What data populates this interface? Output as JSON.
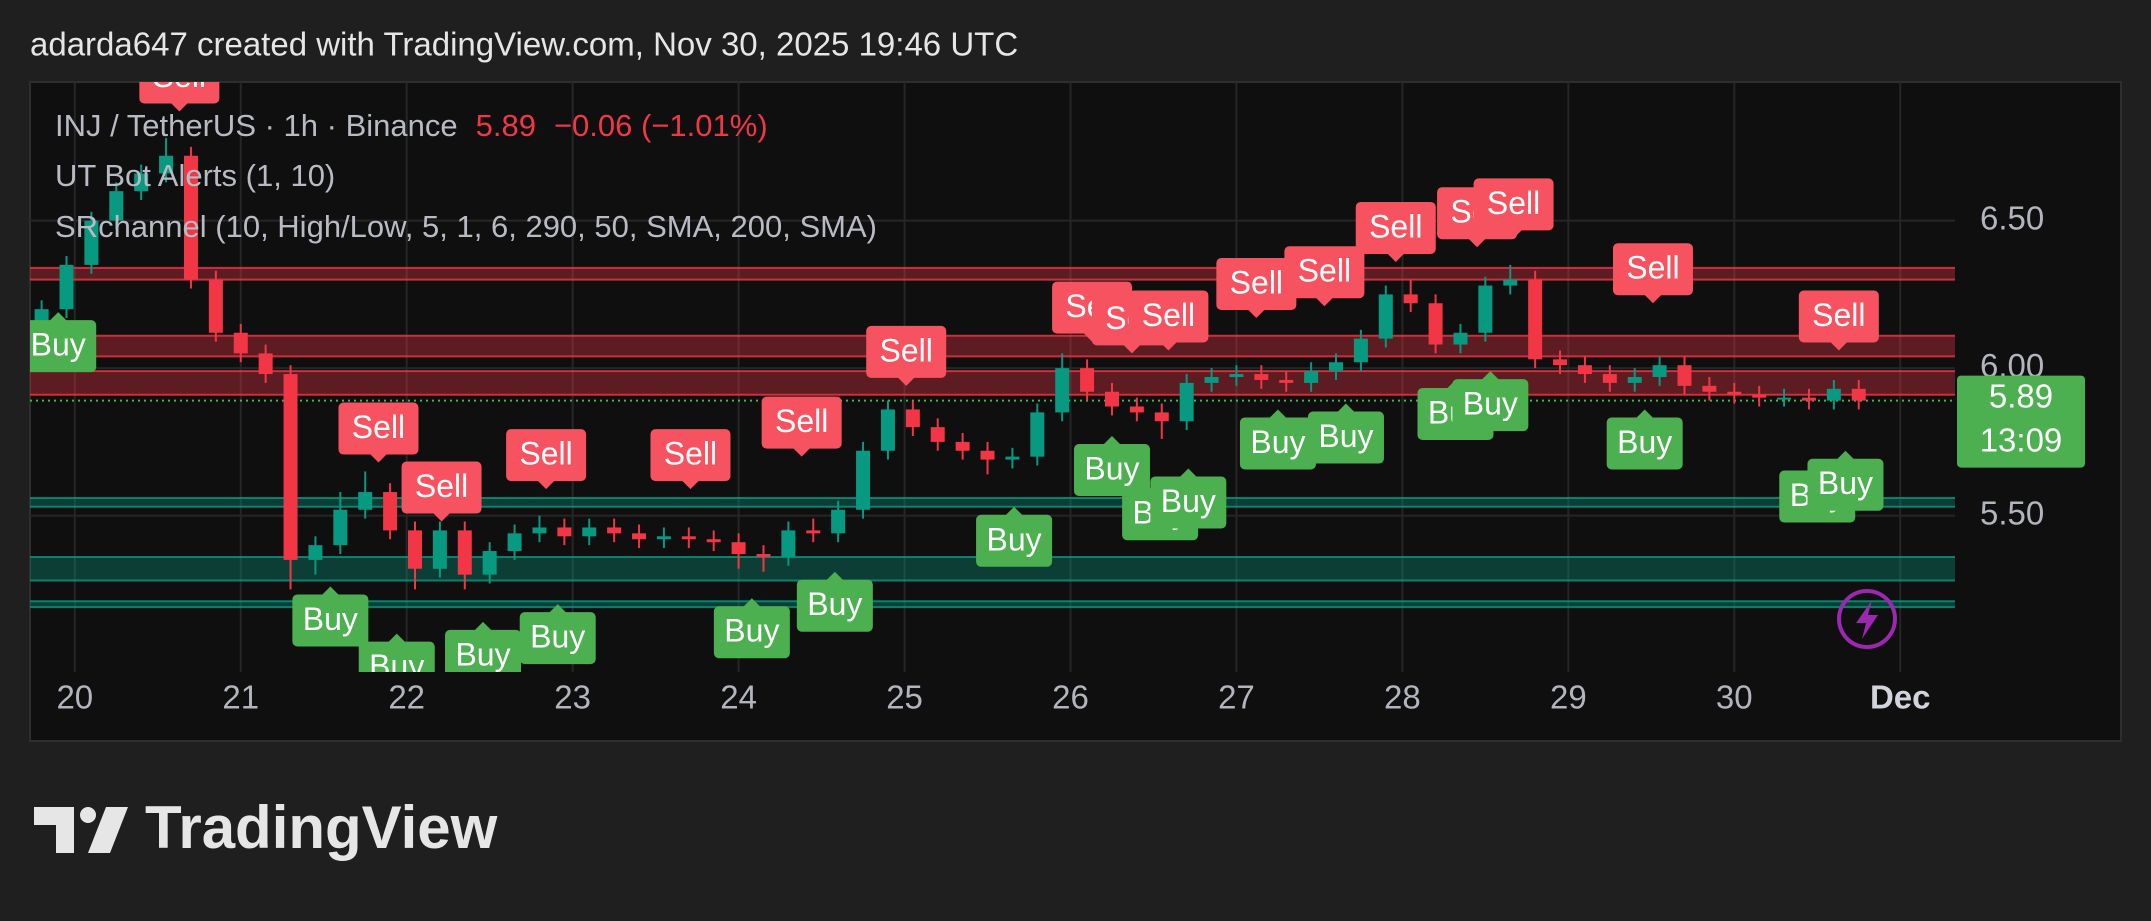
{
  "header": {
    "attribution": "adarda647 created with TradingView.com, Nov 30, 2025 19:46 UTC"
  },
  "footer": {
    "brand": "TradingView"
  },
  "chart_data": {
    "type": "candlestick",
    "symbol": "INJ / TetherUS · 1h · Binance",
    "last_price": 5.89,
    "change_label": "−0.06 (−1.01%)",
    "countdown": "13:09",
    "indicators": [
      "UT Bot Alerts (1, 10)",
      "SRchannel (10, High/Low, 5, 1, 6, 290, 50, SMA, 200, SMA)"
    ],
    "colors": {
      "up": "#089981",
      "down": "#f23645",
      "buy": "#4caf50",
      "sell": "#f7525f",
      "last": "#4caf50"
    },
    "grid": true,
    "xlim": [
      19.73,
      31.33
    ],
    "ylim": [
      4.97,
      6.97
    ],
    "xticks": [
      20,
      21,
      22,
      23,
      24,
      25,
      26,
      27,
      28,
      29,
      30,
      {
        "value": 31,
        "label": "Dec"
      }
    ],
    "yticks": [
      {
        "value": 5.5,
        "label": "5.50"
      },
      {
        "value": 6,
        "label": "6.00"
      },
      {
        "value": 6.5,
        "label": "6.50"
      }
    ],
    "x": [
      19.8,
      19.95,
      20.1,
      20.25,
      20.4,
      20.55,
      20.7,
      20.85,
      21,
      21.15,
      21.3,
      21.45,
      21.6,
      21.75,
      21.9,
      22.05,
      22.2,
      22.35,
      22.5,
      22.65,
      22.8,
      22.95,
      23.1,
      23.25,
      23.4,
      23.55,
      23.7,
      23.85,
      24,
      24.15,
      24.3,
      24.45,
      24.6,
      24.75,
      24.9,
      25.05,
      25.2,
      25.35,
      25.5,
      25.65,
      25.8,
      25.95,
      26.1,
      26.25,
      26.4,
      26.55,
      26.7,
      26.85,
      27,
      27.15,
      27.3,
      27.45,
      27.6,
      27.75,
      27.9,
      28.05,
      28.2,
      28.35,
      28.5,
      28.65,
      28.8,
      28.95,
      29.1,
      29.25,
      29.4,
      29.55,
      29.7,
      29.85,
      30,
      30.15,
      30.3,
      30.45,
      30.6,
      30.75
    ],
    "ohlc": [
      [
        6.15,
        6.23,
        6.12,
        6.2
      ],
      [
        6.2,
        6.38,
        6.17,
        6.35
      ],
      [
        6.35,
        6.53,
        6.32,
        6.5
      ],
      [
        6.5,
        6.63,
        6.47,
        6.6
      ],
      [
        6.6,
        6.69,
        6.57,
        6.66
      ],
      [
        6.66,
        6.78,
        6.63,
        6.72
      ],
      [
        6.72,
        6.75,
        6.27,
        6.3
      ],
      [
        6.3,
        6.33,
        6.09,
        6.12
      ],
      [
        6.12,
        6.15,
        6.02,
        6.05
      ],
      [
        6.05,
        6.08,
        5.95,
        5.98
      ],
      [
        5.98,
        6.01,
        5.25,
        5.35
      ],
      [
        5.35,
        5.43,
        5.3,
        5.4
      ],
      [
        5.4,
        5.58,
        5.37,
        5.52
      ],
      [
        5.52,
        5.65,
        5.49,
        5.58
      ],
      [
        5.58,
        5.61,
        5.42,
        5.45
      ],
      [
        5.45,
        5.48,
        5.25,
        5.32
      ],
      [
        5.32,
        5.48,
        5.29,
        5.45
      ],
      [
        5.45,
        5.48,
        5.25,
        5.3
      ],
      [
        5.3,
        5.41,
        5.27,
        5.38
      ],
      [
        5.38,
        5.47,
        5.35,
        5.44
      ],
      [
        5.44,
        5.5,
        5.41,
        5.46
      ],
      [
        5.46,
        5.49,
        5.4,
        5.43
      ],
      [
        5.43,
        5.49,
        5.4,
        5.46
      ],
      [
        5.46,
        5.49,
        5.41,
        5.44
      ],
      [
        5.44,
        5.47,
        5.39,
        5.42
      ],
      [
        5.42,
        5.46,
        5.39,
        5.43
      ],
      [
        5.43,
        5.46,
        5.39,
        5.42
      ],
      [
        5.42,
        5.45,
        5.38,
        5.41
      ],
      [
        5.41,
        5.44,
        5.32,
        5.37
      ],
      [
        5.37,
        5.4,
        5.31,
        5.36
      ],
      [
        5.36,
        5.48,
        5.33,
        5.45
      ],
      [
        5.45,
        5.49,
        5.41,
        5.44
      ],
      [
        5.44,
        5.55,
        5.41,
        5.52
      ],
      [
        5.52,
        5.75,
        5.49,
        5.72
      ],
      [
        5.72,
        5.89,
        5.69,
        5.86
      ],
      [
        5.86,
        5.89,
        5.77,
        5.8
      ],
      [
        5.8,
        5.83,
        5.72,
        5.75
      ],
      [
        5.75,
        5.78,
        5.69,
        5.72
      ],
      [
        5.72,
        5.75,
        5.64,
        5.69
      ],
      [
        5.69,
        5.73,
        5.66,
        5.7
      ],
      [
        5.7,
        5.88,
        5.67,
        5.85
      ],
      [
        5.85,
        6.05,
        5.82,
        6
      ],
      [
        6,
        6.03,
        5.89,
        5.92
      ],
      [
        5.92,
        5.95,
        5.84,
        5.87
      ],
      [
        5.87,
        5.9,
        5.82,
        5.85
      ],
      [
        5.85,
        5.88,
        5.76,
        5.82
      ],
      [
        5.82,
        5.98,
        5.79,
        5.95
      ],
      [
        5.95,
        6,
        5.92,
        5.97
      ],
      [
        5.97,
        6.01,
        5.94,
        5.98
      ],
      [
        5.98,
        6.01,
        5.93,
        5.96
      ],
      [
        5.96,
        5.99,
        5.92,
        5.95
      ],
      [
        5.95,
        6.02,
        5.92,
        5.99
      ],
      [
        5.99,
        6.05,
        5.96,
        6.02
      ],
      [
        6.02,
        6.13,
        5.99,
        6.1
      ],
      [
        6.1,
        6.28,
        6.07,
        6.25
      ],
      [
        6.25,
        6.3,
        6.19,
        6.22
      ],
      [
        6.22,
        6.25,
        6.05,
        6.08
      ],
      [
        6.08,
        6.15,
        6.05,
        6.12
      ],
      [
        6.12,
        6.31,
        6.09,
        6.28
      ],
      [
        6.28,
        6.35,
        6.25,
        6.3
      ],
      [
        6.3,
        6.33,
        6,
        6.03
      ],
      [
        6.03,
        6.06,
        5.98,
        6.01
      ],
      [
        6.01,
        6.04,
        5.95,
        5.98
      ],
      [
        5.98,
        6.01,
        5.92,
        5.95
      ],
      [
        5.95,
        6,
        5.92,
        5.97
      ],
      [
        5.97,
        6.04,
        5.94,
        6.01
      ],
      [
        6.01,
        6.04,
        5.91,
        5.94
      ],
      [
        5.94,
        5.97,
        5.89,
        5.92
      ],
      [
        5.92,
        5.95,
        5.88,
        5.91
      ],
      [
        5.91,
        5.94,
        5.87,
        5.9
      ],
      [
        5.9,
        5.93,
        5.87,
        5.9
      ],
      [
        5.9,
        5.93,
        5.86,
        5.89
      ],
      [
        5.89,
        5.96,
        5.86,
        5.93
      ],
      [
        5.93,
        5.96,
        5.86,
        5.89
      ]
    ],
    "zones": [
      {
        "low": 6.3,
        "high": 6.34,
        "color": "#f23645"
      },
      {
        "low": 6.04,
        "high": 6.11,
        "color": "#f23645"
      },
      {
        "low": 5.91,
        "high": 5.99,
        "color": "#f23645"
      },
      {
        "low": 5.53,
        "high": 5.56,
        "color": "#089981"
      },
      {
        "low": 5.28,
        "high": 5.36,
        "color": "#089981"
      },
      {
        "low": 5.19,
        "high": 5.21,
        "color": "#089981"
      }
    ],
    "signals": [
      {
        "label": "Sell",
        "x": 20.63,
        "price": 6.87
      },
      {
        "label": "Sell",
        "x": 21.83,
        "price": 5.68
      },
      {
        "label": "Sell",
        "x": 22.21,
        "price": 5.48
      },
      {
        "label": "Sell",
        "x": 22.84,
        "price": 5.59
      },
      {
        "label": "Sell",
        "x": 23.71,
        "price": 5.59
      },
      {
        "label": "Sell",
        "x": 24.38,
        "price": 5.7
      },
      {
        "label": "Sell",
        "x": 25.01,
        "price": 5.94
      },
      {
        "label": "Sell",
        "x": 26.13,
        "price": 6.09
      },
      {
        "label": "Sell",
        "x": 26.37,
        "price": 6.05
      },
      {
        "label": "Sell",
        "x": 26.59,
        "price": 6.06
      },
      {
        "label": "Sell",
        "x": 27.12,
        "price": 6.17
      },
      {
        "label": "Sell",
        "x": 27.53,
        "price": 6.21
      },
      {
        "label": "Sell",
        "x": 27.96,
        "price": 6.36
      },
      {
        "label": "Sell",
        "x": 28.45,
        "price": 6.41
      },
      {
        "label": "Sell",
        "x": 28.67,
        "price": 6.44
      },
      {
        "label": "Sell",
        "x": 29.51,
        "price": 6.22
      },
      {
        "label": "Sell",
        "x": 30.63,
        "price": 6.06
      },
      {
        "label": "Buy",
        "x": 19.9,
        "price": 6.19
      },
      {
        "label": "Buy",
        "x": 21.54,
        "price": 5.26
      },
      {
        "label": "Buy",
        "x": 21.94,
        "price": 5.1
      },
      {
        "label": "Buy",
        "x": 22.46,
        "price": 5.14
      },
      {
        "label": "Buy",
        "x": 22.91,
        "price": 5.2
      },
      {
        "label": "Buy",
        "x": 24.08,
        "price": 5.22
      },
      {
        "label": "Buy",
        "x": 24.58,
        "price": 5.31
      },
      {
        "label": "Buy",
        "x": 25.66,
        "price": 5.53
      },
      {
        "label": "Buy",
        "x": 26.25,
        "price": 5.77
      },
      {
        "label": "Buy",
        "x": 26.54,
        "price": 5.62
      },
      {
        "label": "Buy",
        "x": 26.71,
        "price": 5.66
      },
      {
        "label": "Buy",
        "x": 27.25,
        "price": 5.86
      },
      {
        "label": "Buy",
        "x": 27.66,
        "price": 5.88
      },
      {
        "label": "Buy",
        "x": 28.32,
        "price": 5.96
      },
      {
        "label": "Buy",
        "x": 28.53,
        "price": 5.99
      },
      {
        "label": "Buy",
        "x": 29.46,
        "price": 5.86
      },
      {
        "label": "Buy",
        "x": 30.5,
        "price": 5.68
      },
      {
        "label": "Buy",
        "x": 30.67,
        "price": 5.72
      }
    ]
  }
}
